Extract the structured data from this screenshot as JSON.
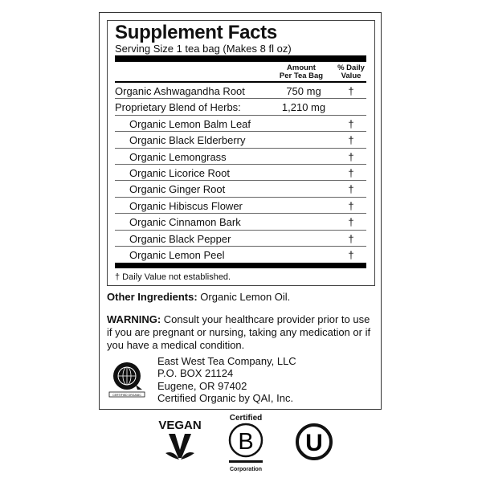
{
  "title": "Supplement Facts",
  "serving": "Serving Size 1 tea bag (Makes 8 fl oz)",
  "columns": {
    "amount_1": "Amount",
    "amount_2": "Per Tea Bag",
    "dv_1": "% Daily",
    "dv_2": "Value"
  },
  "rows": [
    {
      "name": "Organic Ashwagandha Root",
      "amount": "750 mg",
      "dv": "†",
      "indent": false
    },
    {
      "name": "Proprietary Blend of Herbs:",
      "amount": "1,210 mg",
      "dv": "",
      "indent": false
    },
    {
      "name": "Organic Lemon Balm Leaf",
      "amount": "",
      "dv": "†",
      "indent": true
    },
    {
      "name": "Organic Black Elderberry",
      "amount": "",
      "dv": "†",
      "indent": true
    },
    {
      "name": "Organic Lemongrass",
      "amount": "",
      "dv": "†",
      "indent": true
    },
    {
      "name": "Organic Licorice Root",
      "amount": "",
      "dv": "†",
      "indent": true
    },
    {
      "name": "Organic Ginger Root",
      "amount": "",
      "dv": "†",
      "indent": true
    },
    {
      "name": "Organic Hibiscus Flower",
      "amount": "",
      "dv": "†",
      "indent": true
    },
    {
      "name": "Organic Cinnamon Bark",
      "amount": "",
      "dv": "†",
      "indent": true
    },
    {
      "name": "Organic Black Pepper",
      "amount": "",
      "dv": "†",
      "indent": true
    },
    {
      "name": "Organic Lemon Peel",
      "amount": "",
      "dv": "†",
      "indent": true
    }
  ],
  "footnote": "† Daily Value not established.",
  "other": {
    "label": "Other Ingredients:",
    "text": " Organic Lemon Oil."
  },
  "warning": {
    "label": "WARNING:",
    "text": " Consult your healthcare provider prior to use if you are pregnant or nursing, taking any medication or if you have a medical condition."
  },
  "address": [
    "East West Tea Company, LLC",
    "P.O. BOX 21124",
    "Eugene, OR 97402",
    "Certified Organic by QAI, Inc."
  ],
  "qai_logo_text": "CERTIFIED ORGANIC",
  "badges": {
    "vegan": "VEGAN",
    "bcorp_top": "Certified",
    "bcorp_bottom": "Corporation",
    "kosher": "U"
  }
}
